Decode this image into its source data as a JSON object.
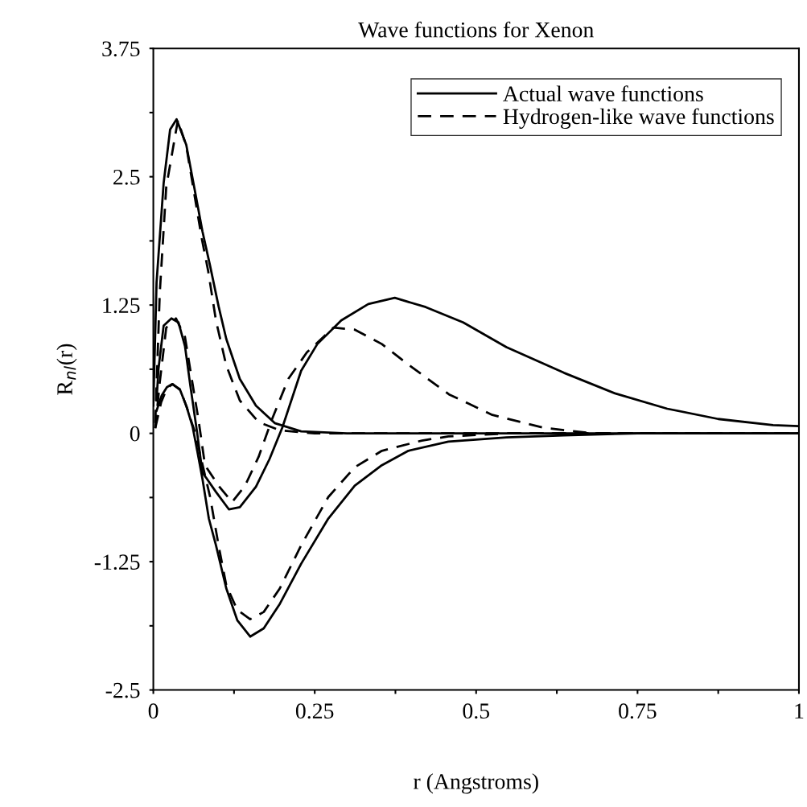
{
  "chart_data": {
    "type": "line",
    "title": "Wave functions for Xenon",
    "xlabel": "r (Angstroms)",
    "ylabel": "R$_{nl}$(r)",
    "xlim": [
      0,
      1
    ],
    "ylim": [
      -2.5,
      3.75
    ],
    "xticks": [
      0,
      {
        "value": 0.125,
        "label": null
      },
      0.25,
      {
        "value": 0.375,
        "label": null
      },
      0.5,
      {
        "value": 0.625,
        "label": null
      },
      0.75,
      {
        "value": 0.875,
        "label": null
      },
      1
    ],
    "yticks": [
      -2.5,
      {
        "value": -1.875,
        "label": null
      },
      -1.25,
      {
        "value": -0.625,
        "label": null
      },
      0,
      {
        "value": 0.625,
        "label": null
      },
      1.25,
      {
        "value": 1.875,
        "label": null
      },
      2.5,
      {
        "value": 3.125,
        "label": null
      },
      3.75
    ],
    "grid": false,
    "legend": "top right",
    "marker": "none",
    "series": [
      {
        "name": "Actual wave functions",
        "color": "#000000",
        "line_style": "solid",
        "x": [
          0,
          0.005,
          0.016,
          0.026,
          0.036,
          0.051,
          0.063,
          0.076,
          0.088,
          0.101,
          0.113,
          0.134,
          0.159,
          0.188,
          0.229,
          0.3,
          0.5,
          0.75,
          1
        ],
        "values": [
          0.27,
          1.47,
          2.44,
          2.96,
          3.06,
          2.81,
          2.41,
          1.97,
          1.63,
          1.24,
          0.92,
          0.53,
          0.27,
          0.1,
          0.02,
          0,
          0,
          0,
          0
        ]
      },
      {
        "color": "#000000",
        "line_style": "solid",
        "x": [
          0.005,
          0.008,
          0.016,
          0.028,
          0.039,
          0.049,
          0.057,
          0.068,
          0.076,
          0.097,
          0.117,
          0.134,
          0.159,
          0.18,
          0.2,
          0.229,
          0.254,
          0.291,
          0.333,
          0.374,
          0.422,
          0.48,
          0.547,
          0.636,
          0.715,
          0.796,
          0.875,
          0.96,
          1
        ],
        "values": [
          0.32,
          0.63,
          1.05,
          1.12,
          1.08,
          0.85,
          0.48,
          0,
          -0.38,
          -0.57,
          -0.74,
          -0.72,
          -0.52,
          -0.25,
          0.06,
          0.61,
          0.87,
          1.1,
          1.26,
          1.32,
          1.23,
          1.08,
          0.84,
          0.59,
          0.39,
          0.24,
          0.14,
          0.08,
          0.07
        ]
      },
      {
        "color": "#000000",
        "line_style": "solid",
        "x": [
          0.005,
          0.013,
          0.021,
          0.029,
          0.041,
          0.051,
          0.061,
          0.068,
          0.076,
          0.086,
          0.097,
          0.113,
          0.13,
          0.15,
          0.171,
          0.196,
          0.229,
          0.271,
          0.312,
          0.354,
          0.395,
          0.457,
          0.547,
          0.636,
          0.75,
          1
        ],
        "values": [
          0.22,
          0.37,
          0.45,
          0.48,
          0.43,
          0.27,
          0.06,
          -0.17,
          -0.44,
          -0.83,
          -1.09,
          -1.51,
          -1.82,
          -1.98,
          -1.9,
          -1.66,
          -1.27,
          -0.83,
          -0.51,
          -0.31,
          -0.17,
          -0.08,
          -0.04,
          -0.02,
          0,
          0
        ]
      },
      {
        "name": "Hydrogen-like wave functions",
        "color": "#000000",
        "line_style": "dashed",
        "x": [
          0.003,
          0.01,
          0.02,
          0.038,
          0.051,
          0.063,
          0.075,
          0.085,
          0.097,
          0.113,
          0.134,
          0.163,
          0.196,
          0.25,
          0.5,
          0.75,
          1
        ],
        "values": [
          0.1,
          1.37,
          2.4,
          3.05,
          2.8,
          2.35,
          1.9,
          1.58,
          1.1,
          0.66,
          0.32,
          0.11,
          0.03,
          0,
          0,
          0,
          0
        ]
      },
      {
        "color": "#000000",
        "line_style": "dashed",
        "x": [
          0.003,
          0.01,
          0.02,
          0.035,
          0.049,
          0.059,
          0.07,
          0.08,
          0.101,
          0.122,
          0.142,
          0.163,
          0.184,
          0.209,
          0.238,
          0.279,
          0.312,
          0.354,
          0.395,
          0.458,
          0.525,
          0.604,
          0.68,
          0.8,
          1
        ],
        "values": [
          0.05,
          0.5,
          1.03,
          1.12,
          0.94,
          0.55,
          0.13,
          -0.31,
          -0.51,
          -0.67,
          -0.51,
          -0.23,
          0.14,
          0.53,
          0.79,
          1.03,
          1.01,
          0.87,
          0.67,
          0.38,
          0.18,
          0.055,
          0,
          0,
          0
        ]
      },
      {
        "color": "#000000",
        "line_style": "dashed",
        "x": [
          0.003,
          0.012,
          0.021,
          0.03,
          0.042,
          0.052,
          0.065,
          0.076,
          0.088,
          0.101,
          0.113,
          0.13,
          0.15,
          0.171,
          0.196,
          0.229,
          0.271,
          0.312,
          0.354,
          0.416,
          0.457,
          0.55,
          0.75,
          1
        ],
        "values": [
          0.05,
          0.3,
          0.44,
          0.48,
          0.42,
          0.25,
          0.0,
          -0.3,
          -0.62,
          -1.09,
          -1.48,
          -1.72,
          -1.81,
          -1.74,
          -1.51,
          -1.09,
          -0.62,
          -0.33,
          -0.17,
          -0.07,
          -0.03,
          0,
          0,
          0
        ]
      }
    ]
  }
}
